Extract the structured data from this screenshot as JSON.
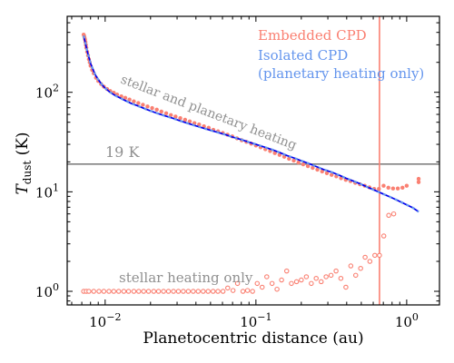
{
  "chart_data": {
    "type": "scatter",
    "title": "",
    "xlabel": "Planetocentric distance (au)",
    "ylabel": "T_dust (K)",
    "ylabel_main": "T",
    "ylabel_sub": "dust",
    "ylabel_unit": " (K)",
    "xscale": "log",
    "yscale": "log",
    "xlim": [
      0.0056,
      1.65
    ],
    "ylim": [
      0.73,
      580
    ],
    "x_ticks": [
      {
        "value": 0.01,
        "base": "10",
        "exp": "−2"
      },
      {
        "value": 0.1,
        "base": "10",
        "exp": "−1"
      },
      {
        "value": 1,
        "base": "10",
        "exp": "0"
      }
    ],
    "y_ticks": [
      {
        "value": 1,
        "base": "10",
        "exp": "0"
      },
      {
        "value": 10,
        "base": "10",
        "exp": "1"
      },
      {
        "value": 100,
        "base": "10",
        "exp": "2"
      }
    ],
    "legend": {
      "placement": "top-right",
      "entries": [
        {
          "text": "Embedded CPD",
          "color": "#fa8072"
        },
        {
          "text": "Isolated CPD",
          "color": "#6495ed"
        },
        {
          "text": "(planetary heating only)",
          "color": "#6495ed"
        }
      ]
    },
    "annotations": {
      "stellar_planetary": "stellar and planetary heating",
      "stellar_only": "stellar heating only",
      "threshold": "19 K"
    },
    "reference_lines": {
      "horizontal_y": 19,
      "vertical_x": 0.66
    },
    "colors": {
      "embedded": "#fa8072",
      "isolated_dashed": "#6495ed",
      "isolated_line": "#0000ee",
      "threshold": "#808080",
      "vertical": "#fa8072"
    },
    "series": [
      {
        "name": "Embedded CPD",
        "style": "filled",
        "x": [
          0.0072,
          0.00725,
          0.0073,
          0.00735,
          0.0074,
          0.00745,
          0.0075,
          0.0076,
          0.0077,
          0.0078,
          0.0079,
          0.008,
          0.0082,
          0.0084,
          0.0087,
          0.009,
          0.0094,
          0.0098,
          0.0103,
          0.0108,
          0.0114,
          0.012,
          0.0128,
          0.0136,
          0.0145,
          0.0155,
          0.0166,
          0.0178,
          0.0191,
          0.0205,
          0.022,
          0.0236,
          0.0254,
          0.0273,
          0.0293,
          0.0315,
          0.0339,
          0.0364,
          0.0391,
          0.042,
          0.0452,
          0.0486,
          0.0522,
          0.0561,
          0.0603,
          0.0648,
          0.0697,
          0.0749,
          0.0805,
          0.0865,
          0.093,
          0.1,
          0.1075,
          0.1155,
          0.1242,
          0.1335,
          0.1435,
          0.1542,
          0.1658,
          0.1782,
          0.1915,
          0.2059,
          0.2213,
          0.2379,
          0.2557,
          0.2749,
          0.2955,
          0.3176,
          0.3414,
          0.367,
          0.3945,
          0.4241,
          0.4558,
          0.49,
          0.527,
          0.566,
          0.6085,
          0.654,
          0.703,
          0.756,
          0.812,
          0.873,
          0.938,
          1.0,
          1.2,
          1.2
        ],
        "y": [
          380,
          370,
          355,
          340,
          320,
          300,
          280,
          255,
          235,
          215,
          200,
          185,
          168,
          155,
          140,
          130,
          121,
          114,
          108,
          103,
          99,
          95,
          91,
          88,
          84.5,
          81,
          78,
          75,
          72,
          69.5,
          67,
          64,
          61.5,
          59,
          57,
          55,
          53,
          51,
          49,
          47.5,
          45.5,
          44,
          42,
          40.5,
          39,
          37.5,
          36,
          34.5,
          33,
          31.8,
          30.5,
          29.2,
          28,
          26.8,
          25.7,
          24.5,
          23.5,
          22.5,
          21.5,
          20.6,
          19.7,
          18.9,
          18.1,
          17.4,
          16.7,
          16,
          15.4,
          14.8,
          14.3,
          13.7,
          13.2,
          12.8,
          12.3,
          11.9,
          11.5,
          11.1,
          10.7,
          10.7,
          11.5,
          11,
          10.8,
          10.8,
          11,
          11.5,
          12.5,
          13.5
        ]
      },
      {
        "name": "Embedded CPD (hollow)",
        "style": "hollow",
        "x": [
          0.0072,
          0.0075,
          0.0078,
          0.0084,
          0.0091,
          0.0098,
          0.0106,
          0.0114,
          0.0123,
          0.0133,
          0.0143,
          0.0155,
          0.0167,
          0.018,
          0.0194,
          0.021,
          0.0226,
          0.0244,
          0.0263,
          0.0284,
          0.0306,
          0.033,
          0.0356,
          0.0384,
          0.0414,
          0.0447,
          0.0482,
          0.052,
          0.056,
          0.0605,
          0.065,
          0.0705,
          0.0755,
          0.082,
          0.088,
          0.095,
          0.102,
          0.11,
          0.118,
          0.128,
          0.138,
          0.148,
          0.16,
          0.172,
          0.186,
          0.2,
          0.216,
          0.233,
          0.251,
          0.271,
          0.292,
          0.315,
          0.34,
          0.366,
          0.395,
          0.426,
          0.459,
          0.495,
          0.53,
          0.57,
          0.615,
          0.66,
          0.705,
          0.76,
          0.82
        ],
        "y": [
          1,
          1,
          1,
          1,
          1,
          1,
          1,
          1,
          1,
          1,
          1,
          1,
          1,
          1,
          1,
          1,
          1,
          1,
          1,
          1,
          1,
          1,
          1,
          1,
          1,
          1,
          1,
          1,
          1,
          1,
          1.08,
          1.02,
          1.2,
          1,
          1.02,
          1,
          1.2,
          1.1,
          1.4,
          1.2,
          1.05,
          1.3,
          1.6,
          1.2,
          1.25,
          1.3,
          1.4,
          1.2,
          1.35,
          1.25,
          1.4,
          1.45,
          1.6,
          1.35,
          1.1,
          1.8,
          1.45,
          1.7,
          2.2,
          2,
          2.3,
          2.3,
          3.6,
          5.8,
          6
        ]
      },
      {
        "name": "Isolated CPD",
        "style": "line",
        "x": [
          0.0072,
          0.0074,
          0.0076,
          0.0078,
          0.008,
          0.0083,
          0.0086,
          0.009,
          0.0095,
          0.01,
          0.0107,
          0.0115,
          0.0125,
          0.0135,
          0.015,
          0.0165,
          0.0185,
          0.02,
          0.0225,
          0.025,
          0.028,
          0.031,
          0.035,
          0.04,
          0.045,
          0.05,
          0.056,
          0.063,
          0.07,
          0.08,
          0.09,
          0.1,
          0.115,
          0.13,
          0.145,
          0.16,
          0.18,
          0.2,
          0.225,
          0.25,
          0.28,
          0.32,
          0.36,
          0.4,
          0.45,
          0.5,
          0.56,
          0.63,
          0.7,
          0.8,
          0.9,
          1.0,
          1.1,
          1.2
        ],
        "y": [
          370,
          310,
          260,
          225,
          195,
          170,
          150,
          134,
          120,
          110,
          101,
          94,
          88,
          83,
          77,
          73,
          68,
          65,
          61,
          58,
          55,
          52,
          49,
          46,
          43.5,
          41.5,
          39.5,
          37.5,
          35.5,
          33.5,
          31.5,
          30,
          28,
          26.3,
          24.7,
          23.2,
          21.8,
          20.5,
          19.2,
          18,
          16.8,
          15.7,
          14.6,
          13.6,
          12.7,
          11.9,
          11,
          10.2,
          9.5,
          8.7,
          8,
          7.4,
          6.9,
          6.3
        ]
      }
    ]
  }
}
